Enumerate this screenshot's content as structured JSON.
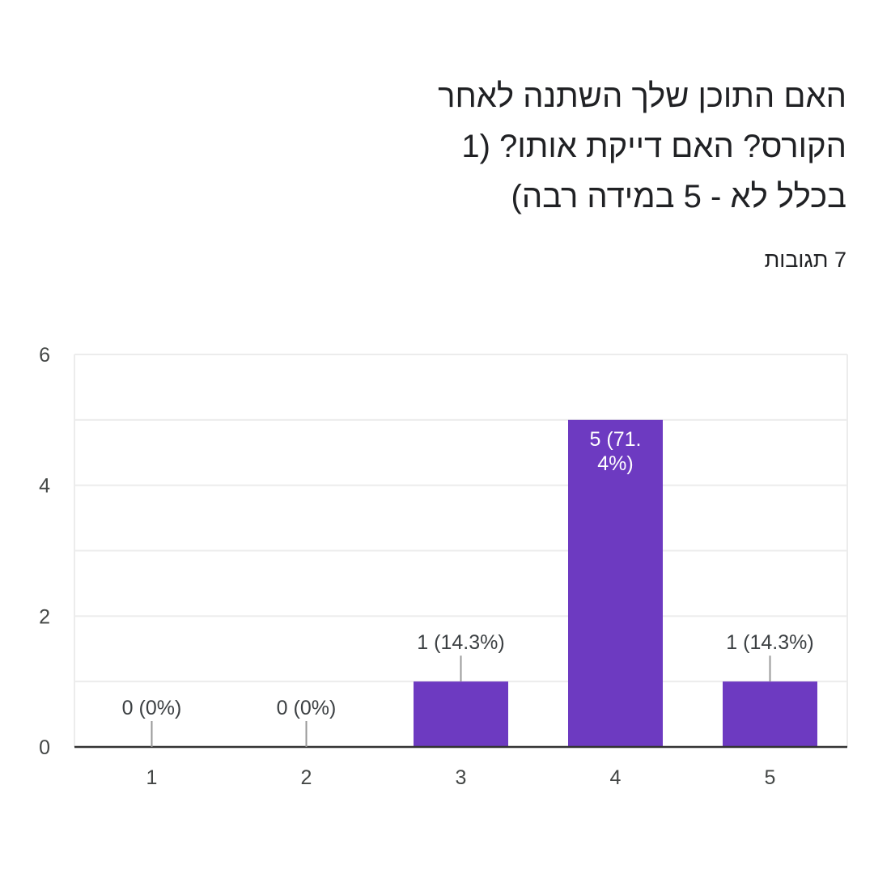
{
  "question": {
    "title_lines": [
      "האם התוכן שלך השתנה לאחר",
      "הקורס? האם דייקת אותו? (1",
      "בכלל לא - 5 במידה רבה)"
    ],
    "responses": "7 תגובות"
  },
  "chart_data": {
    "type": "bar",
    "categories": [
      "1",
      "2",
      "3",
      "4",
      "5"
    ],
    "values": [
      0,
      0,
      1,
      5,
      1
    ],
    "labels": [
      "0 (0%)",
      "0 (0%)",
      "1 (14.3%)",
      "5 (71.4%)",
      "1 (14.3%)"
    ],
    "label_lines": [
      [
        "0 (0%)"
      ],
      [
        "0 (0%)"
      ],
      [
        "1 (14.3%)"
      ],
      [
        "5 (71.",
        "4%)"
      ],
      [
        "1 (14.3%)"
      ]
    ],
    "ylim": [
      0,
      6
    ],
    "yticks": [
      "0",
      "2",
      "4",
      "6"
    ],
    "grid": true,
    "bar_color": "#6d3ac1",
    "grid_color": "#ececec",
    "axis_color": "#333333",
    "leader_color": "#999999"
  }
}
